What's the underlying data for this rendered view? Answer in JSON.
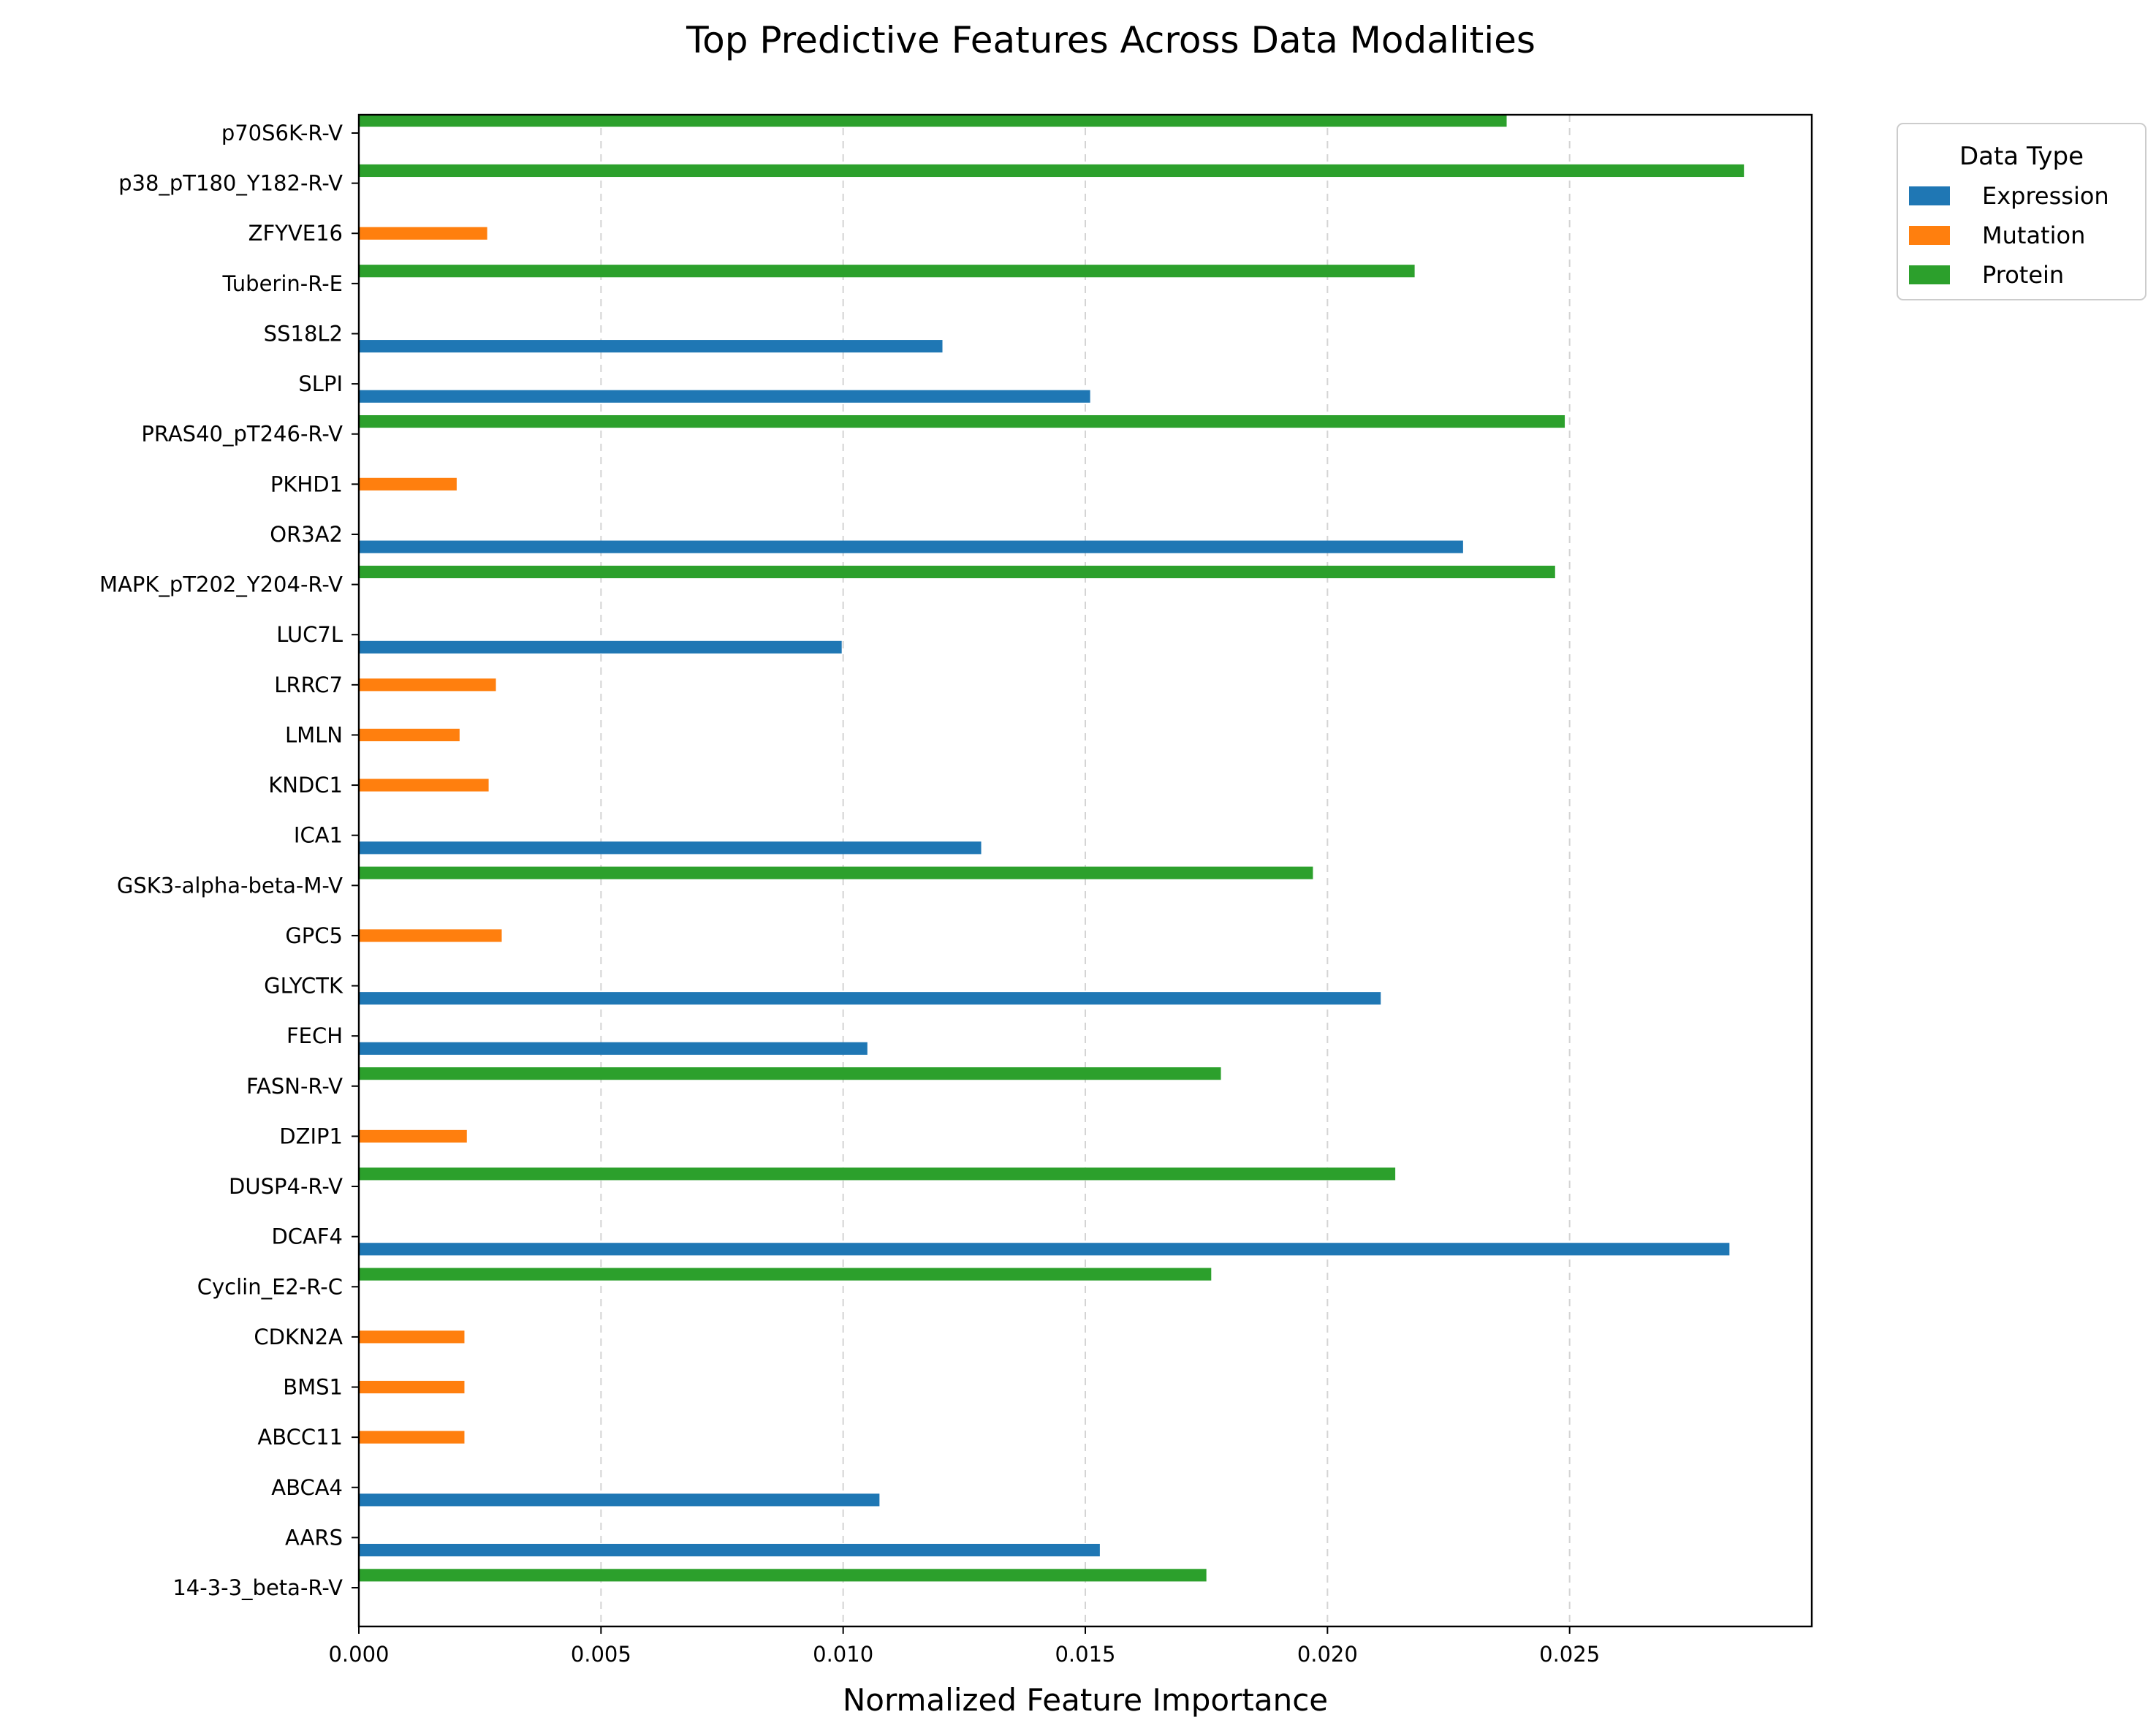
{
  "chart_data": {
    "type": "bar",
    "orientation": "horizontal",
    "title": "Top Predictive Features Across Data Modalities",
    "xlabel": "Normalized Feature Importance",
    "ylabel": "",
    "xlim": [
      0,
      0.03
    ],
    "xticks": [
      0.0,
      0.005,
      0.01,
      0.015,
      0.02,
      0.025
    ],
    "xtick_labels": [
      "0.000",
      "0.005",
      "0.010",
      "0.015",
      "0.020",
      "0.025"
    ],
    "grid": "x, dashed",
    "legend_title": "Data Type",
    "legend_position": "outside-top-right",
    "colors": {
      "Expression": "#1f77b4",
      "Mutation": "#ff7f0e",
      "Protein": "#2ca02c"
    },
    "categories": [
      "p70S6K-R-V",
      "p38_pT180_Y182-R-V",
      "ZFYVE16",
      "Tuberin-R-E",
      "SS18L2",
      "SLPI",
      "PRAS40_pT246-R-V",
      "PKHD1",
      "OR3A2",
      "MAPK_pT202_Y204-R-V",
      "LUC7L",
      "LRRC7",
      "LMLN",
      "KNDC1",
      "ICA1",
      "GSK3-alpha-beta-M-V",
      "GPC5",
      "GLYCTK",
      "FECH",
      "FASN-R-V",
      "DZIP1",
      "DUSP4-R-V",
      "DCAF4",
      "Cyclin_E2-R-C",
      "CDKN2A",
      "BMS1",
      "ABCC11",
      "ABCA4",
      "AARS",
      "14-3-3_beta-R-V"
    ],
    "series": [
      {
        "name": "Expression",
        "values": [
          0,
          0,
          0,
          0,
          0.01205,
          0.0151,
          0,
          0,
          0.0228,
          0,
          0.00997,
          0,
          0,
          0,
          0.01285,
          0,
          0,
          0.0211,
          0.0105,
          0,
          0,
          0,
          0.0283,
          0,
          0,
          0,
          0,
          0.01075,
          0.0153,
          0
        ]
      },
      {
        "name": "Mutation",
        "values": [
          0,
          0,
          0.00265,
          0,
          0,
          0,
          0,
          0.00202,
          0,
          0,
          0,
          0.00283,
          0.00208,
          0.00268,
          0,
          0,
          0.00295,
          0,
          0,
          0,
          0.00223,
          0,
          0,
          0,
          0.00218,
          0.00218,
          0.00218,
          0,
          0,
          0
        ]
      },
      {
        "name": "Protein",
        "values": [
          0.0237,
          0.0286,
          0,
          0.0218,
          0,
          0,
          0.0249,
          0,
          0,
          0.0247,
          0,
          0,
          0,
          0,
          0,
          0.0197,
          0,
          0,
          0,
          0.0178,
          0,
          0.0214,
          0,
          0.0176,
          0,
          0,
          0,
          0,
          0,
          0.0175
        ]
      }
    ]
  }
}
